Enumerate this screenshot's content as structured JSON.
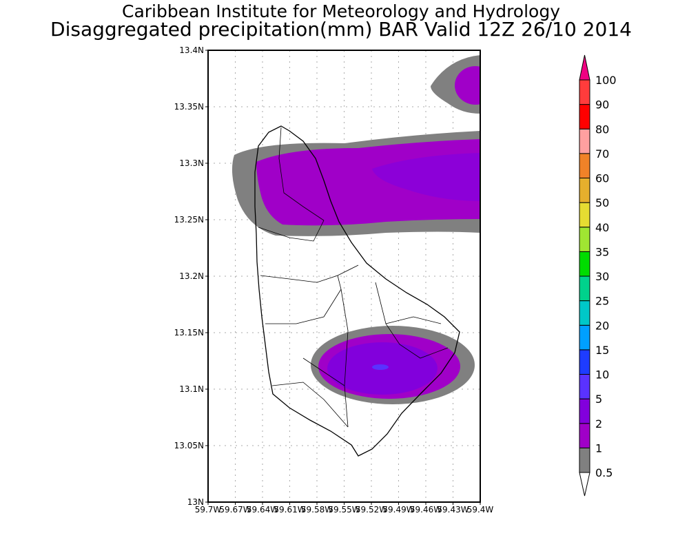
{
  "title": {
    "line1": "Caribbean Institute for Meteorology and Hydrology",
    "line2": "Disaggregated precipitation(mm) BAR Valid 12Z 26/10 2014"
  },
  "chart_data": {
    "type": "heatmap",
    "title": "Disaggregated precipitation(mm) BAR Valid 12Z 26/10 2014",
    "region": "Barbados",
    "ylim": [
      13.0,
      13.4
    ],
    "xlim": [
      -59.7,
      -59.4
    ],
    "y_ticks": [
      "13N",
      "13.05N",
      "13.1N",
      "13.15N",
      "13.2N",
      "13.25N",
      "13.3N",
      "13.35N",
      "13.4N"
    ],
    "x_ticks": [
      "59.7W",
      "59.67W",
      "59.64W",
      "59.61W",
      "59.58W",
      "59.55W",
      "59.52W",
      "59.49W",
      "59.46W",
      "59.43W",
      "59.4W"
    ],
    "grid": true,
    "colorbar": {
      "levels": [
        "0.5",
        "1",
        "2",
        "5",
        "10",
        "15",
        "20",
        "25",
        "30",
        "35",
        "40",
        "50",
        "60",
        "70",
        "80",
        "90",
        "100"
      ],
      "colors": [
        "#ffffff",
        "#808080",
        "#a000c8",
        "#8200dc",
        "#5a32ff",
        "#1e3cff",
        "#00a0ff",
        "#00c8c8",
        "#00d28c",
        "#00dc00",
        "#a0e632",
        "#e6dc32",
        "#e6af2d",
        "#f08228",
        "#ffa0a0",
        "#ff0000",
        "#ff3c3c",
        "#f00082"
      ],
      "placement": "right"
    },
    "features": [
      {
        "name": "northern band",
        "lat_range": [
          13.24,
          13.325
        ],
        "max_class": "2-5"
      },
      {
        "name": "northeast offshore cell",
        "lat_range": [
          13.35,
          13.39
        ],
        "max_class": "1-2"
      },
      {
        "name": "southern cell",
        "lat_range": [
          13.09,
          13.15
        ],
        "max_class": "5-10"
      }
    ]
  }
}
